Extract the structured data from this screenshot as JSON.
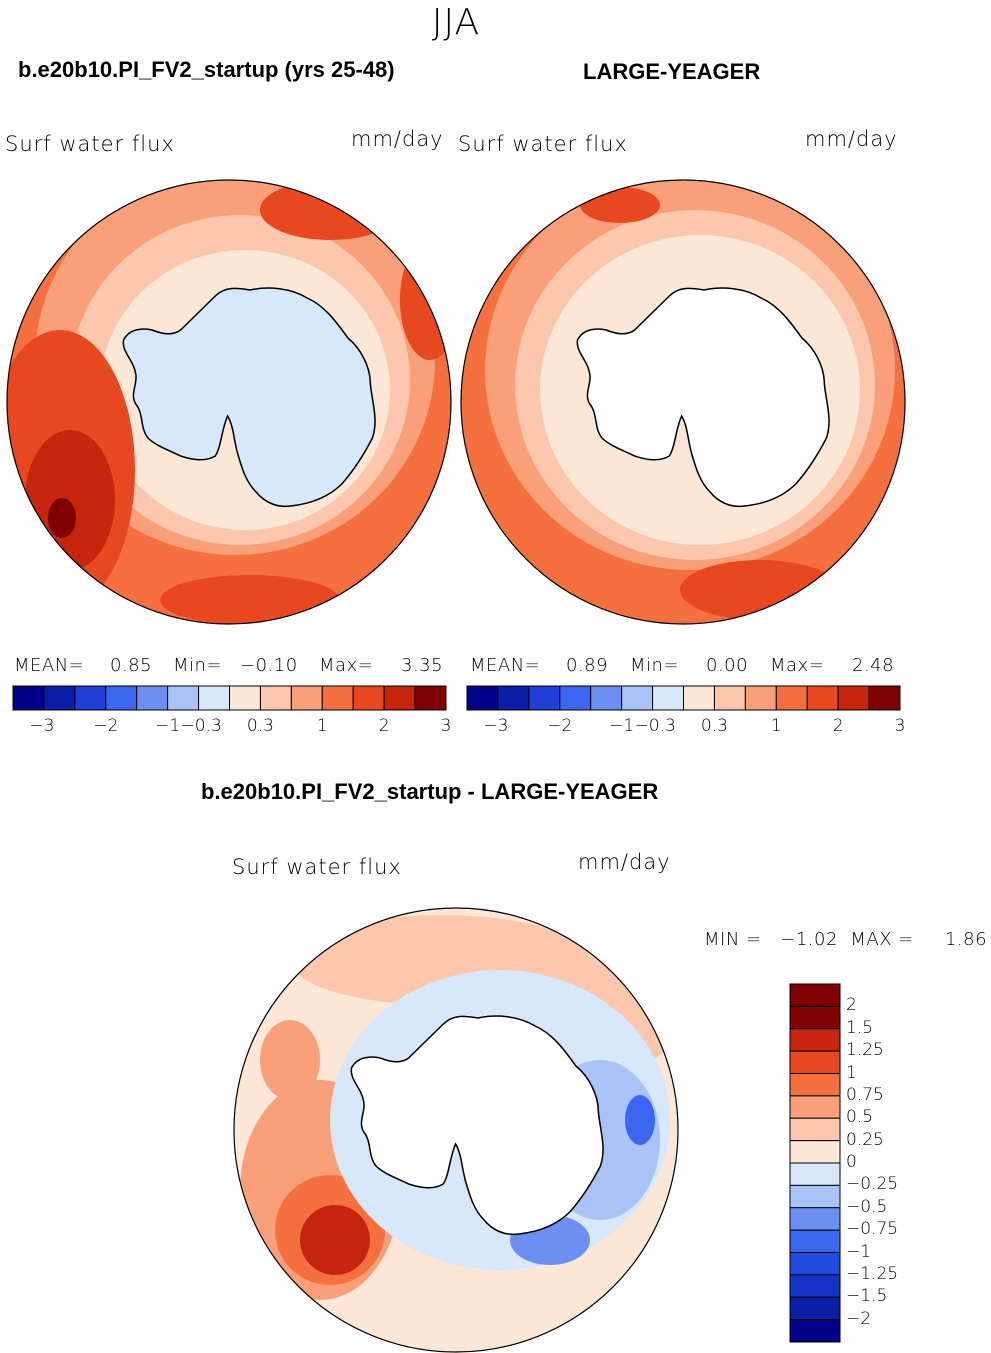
{
  "season": "JJA",
  "panels": [
    {
      "title": "b.e20b10.PI_FV2_startup (yrs 25-48)",
      "left_label": "Surf water flux",
      "right_label": "mm/day",
      "stats": {
        "mean_label": "MEAN=",
        "mean": "0.85",
        "min_label": "Min=",
        "min": "−0.10",
        "max_label": "Max=",
        "max": "3.35"
      }
    },
    {
      "title": "LARGE-YEAGER",
      "left_label": "Surf water flux",
      "right_label": "mm/day",
      "stats": {
        "mean_label": "MEAN=",
        "mean": "0.89",
        "min_label": "Min=",
        "min": "0.00",
        "max_label": "Max=",
        "max": "2.48"
      }
    }
  ],
  "diff_panel": {
    "title": "b.e20b10.PI_FV2_startup - LARGE-YEAGER",
    "left_label": "Surf water flux",
    "right_label": "mm/day",
    "minmax": "MIN =   −1.02  MAX =     1.86"
  },
  "colors": {
    "abs_scale": [
      "#00008b",
      "#0b1ea8",
      "#1f3fd6",
      "#3b66f0",
      "#6c8ff2",
      "#a9c3f7",
      "#d6e8fa",
      "#fde7d6",
      "#fcc7ad",
      "#f99f7a",
      "#f5703f",
      "#e8481f",
      "#c4250c",
      "#7e0000"
    ],
    "diff_scale": [
      "#00008b",
      "#0b1ea8",
      "#1533c4",
      "#1f4de0",
      "#3b66f0",
      "#6c8ff2",
      "#a9c3f7",
      "#d6e8fa",
      "#fde7d6",
      "#fcc7ad",
      "#f99f7a",
      "#f5703f",
      "#e8481f",
      "#c4250c",
      "#7e0000"
    ],
    "land": "#ffffff",
    "land_model": "#d6e8fa"
  },
  "chart_data": [
    {
      "type": "heatmap",
      "title": "b.e20b10.PI_FV2_startup (yrs 25-48)",
      "variable": "Surf water flux",
      "units": "mm/day",
      "projection": "south polar stereographic",
      "levels": [
        -3,
        -2.5,
        -2,
        -1.5,
        -1,
        -0.5,
        -0.3,
        0,
        0.3,
        0.5,
        1,
        1.5,
        2,
        2.5,
        3
      ],
      "colorbar_ticks": [
        "−3",
        "−2",
        "−1",
        "−0.3",
        "0.3",
        "1",
        "2",
        "3"
      ],
      "mean": 0.85,
      "min": -0.1,
      "max": 3.35
    },
    {
      "type": "heatmap",
      "title": "LARGE-YEAGER",
      "variable": "Surf water flux",
      "units": "mm/day",
      "projection": "south polar stereographic",
      "levels": [
        -3,
        -2.5,
        -2,
        -1.5,
        -1,
        -0.5,
        -0.3,
        0,
        0.3,
        0.5,
        1,
        1.5,
        2,
        2.5,
        3
      ],
      "colorbar_ticks": [
        "−3",
        "−2",
        "−1",
        "−0.3",
        "0.3",
        "1",
        "2",
        "3"
      ],
      "mean": 0.89,
      "min": 0.0,
      "max": 2.48
    },
    {
      "type": "heatmap",
      "title": "b.e20b10.PI_FV2_startup - LARGE-YEAGER",
      "variable": "Surf water flux",
      "units": "mm/day",
      "projection": "south polar stereographic",
      "levels": [
        -2,
        -1.5,
        -1.25,
        -1,
        -0.75,
        -0.5,
        -0.25,
        0,
        0.25,
        0.5,
        0.75,
        1,
        1.25,
        1.5,
        2
      ],
      "colorbar_ticks": [
        "2",
        "1.5",
        "1.25",
        "1",
        "0.75",
        "0.5",
        "0.25",
        "0",
        "−0.25",
        "−0.5",
        "−0.75",
        "−1",
        "−1.25",
        "−1.5",
        "−2"
      ],
      "min": -1.02,
      "max": 1.86
    }
  ]
}
